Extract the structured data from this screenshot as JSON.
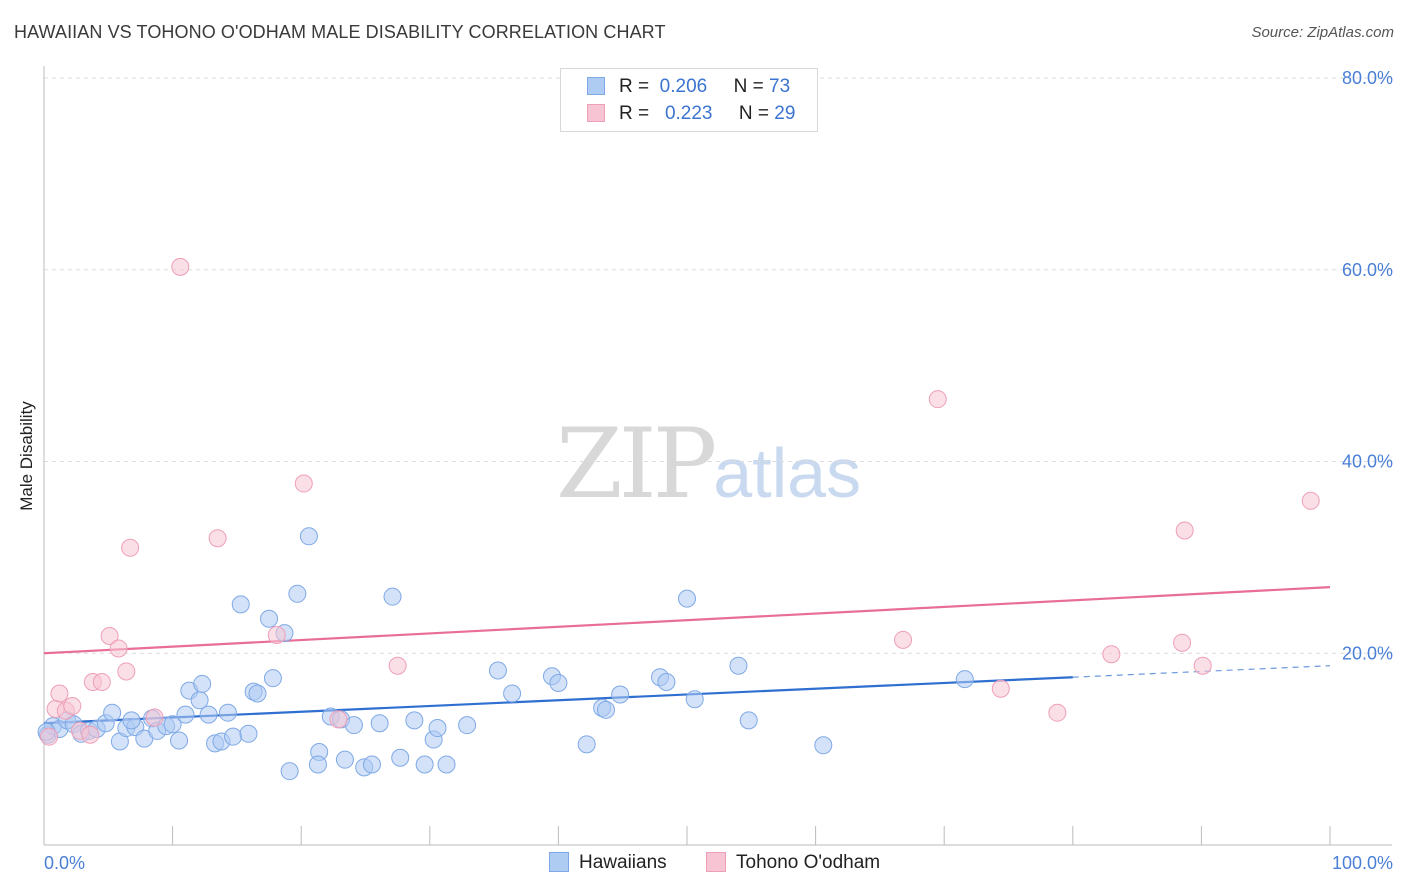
{
  "title": "HAWAIIAN VS TOHONO O'ODHAM MALE DISABILITY CORRELATION CHART",
  "source": "Source: ZipAtlas.com",
  "watermark": {
    "zip": "ZIP",
    "atlas": "atlas"
  },
  "legend": {
    "r_label": "R =",
    "n_label": "N =",
    "series": [
      {
        "r": "0.206",
        "n": "73",
        "fill": "#aecbf2",
        "stroke": "#7fa9e6"
      },
      {
        "r": "0.223",
        "n": "29",
        "fill": "#f7c4d3",
        "stroke": "#ee9fb8"
      }
    ]
  },
  "bottom_legend": [
    "Hawaiians",
    "Tohono O'odham"
  ],
  "chart_data": {
    "type": "scatter",
    "title": "HAWAIIAN VS TOHONO O'ODHAM MALE DISABILITY CORRELATION CHART",
    "xlabel": "",
    "ylabel": "Male Disability",
    "xlim": [
      0,
      100
    ],
    "ylim": [
      0,
      80
    ],
    "y_ticks": [
      20,
      40,
      60,
      80
    ],
    "y_tick_labels": [
      "20.0%",
      "40.0%",
      "60.0%",
      "80.0%"
    ],
    "x_tick_labels": [
      "0.0%",
      "100.0%"
    ],
    "series": [
      {
        "name": "Hawaiians",
        "color": "#6f9fe3",
        "line_color": "#2f6fd0",
        "trend": {
          "x0": 0,
          "y0": 12.7,
          "x1": 80,
          "y1": 17.5,
          "dash_to_x": 100,
          "dash_to_y": 18.7
        },
        "points": [
          [
            0.3,
            11.5
          ],
          [
            0.7,
            12.4
          ],
          [
            1.2,
            12.1
          ],
          [
            1.8,
            13.0
          ],
          [
            2.3,
            12.6
          ],
          [
            2.9,
            11.6
          ],
          [
            3.5,
            11.9
          ],
          [
            4.1,
            12.1
          ],
          [
            4.8,
            12.7
          ],
          [
            5.3,
            13.8
          ],
          [
            5.9,
            10.8
          ],
          [
            6.4,
            12.2
          ],
          [
            7.1,
            12.3
          ],
          [
            7.8,
            11.1
          ],
          [
            8.4,
            13.2
          ],
          [
            8.8,
            11.9
          ],
          [
            9.5,
            12.4
          ],
          [
            10.0,
            12.6
          ],
          [
            10.5,
            10.9
          ],
          [
            11.0,
            13.6
          ],
          [
            11.3,
            16.1
          ],
          [
            12.1,
            15.1
          ],
          [
            12.3,
            16.8
          ],
          [
            12.8,
            13.6
          ],
          [
            13.3,
            10.6
          ],
          [
            13.8,
            10.8
          ],
          [
            14.3,
            13.8
          ],
          [
            14.7,
            11.3
          ],
          [
            15.3,
            25.1
          ],
          [
            15.9,
            11.6
          ],
          [
            16.3,
            16.0
          ],
          [
            16.6,
            15.8
          ],
          [
            17.5,
            23.6
          ],
          [
            17.8,
            17.4
          ],
          [
            18.7,
            22.1
          ],
          [
            19.1,
            7.7
          ],
          [
            19.7,
            26.2
          ],
          [
            20.6,
            32.2
          ],
          [
            21.4,
            9.7
          ],
          [
            21.3,
            8.4
          ],
          [
            22.3,
            13.4
          ],
          [
            23.1,
            13.1
          ],
          [
            23.4,
            8.9
          ],
          [
            24.1,
            12.5
          ],
          [
            24.9,
            8.1
          ],
          [
            25.5,
            8.4
          ],
          [
            26.1,
            12.7
          ],
          [
            27.1,
            25.9
          ],
          [
            27.7,
            9.1
          ],
          [
            28.8,
            13.0
          ],
          [
            29.6,
            8.4
          ],
          [
            30.3,
            11.0
          ],
          [
            30.6,
            12.2
          ],
          [
            31.3,
            8.4
          ],
          [
            32.9,
            12.5
          ],
          [
            35.3,
            18.2
          ],
          [
            36.4,
            15.8
          ],
          [
            39.5,
            17.6
          ],
          [
            40.0,
            16.9
          ],
          [
            42.2,
            10.5
          ],
          [
            43.4,
            14.3
          ],
          [
            43.7,
            14.1
          ],
          [
            44.8,
            15.7
          ],
          [
            47.9,
            17.5
          ],
          [
            48.4,
            17.0
          ],
          [
            50.0,
            25.7
          ],
          [
            50.6,
            15.2
          ],
          [
            54.0,
            18.7
          ],
          [
            54.8,
            13.0
          ],
          [
            60.6,
            10.4
          ],
          [
            71.6,
            17.3
          ],
          [
            0.2,
            11.8
          ],
          [
            6.8,
            13.0
          ]
        ]
      },
      {
        "name": "Tohono O'odham",
        "color": "#f2a0bb",
        "line_color": "#e86d97",
        "trend": {
          "x0": 0,
          "y0": 20.0,
          "x1": 100,
          "y1": 26.9
        },
        "points": [
          [
            0.4,
            11.3
          ],
          [
            0.9,
            14.2
          ],
          [
            1.2,
            15.8
          ],
          [
            1.7,
            14.0
          ],
          [
            2.2,
            14.5
          ],
          [
            2.8,
            11.9
          ],
          [
            3.6,
            11.5
          ],
          [
            3.8,
            17.0
          ],
          [
            4.5,
            17.0
          ],
          [
            5.1,
            21.8
          ],
          [
            5.8,
            20.5
          ],
          [
            6.4,
            18.1
          ],
          [
            6.7,
            31.0
          ],
          [
            8.6,
            13.3
          ],
          [
            10.6,
            60.3
          ],
          [
            13.5,
            32.0
          ],
          [
            18.1,
            21.9
          ],
          [
            20.2,
            37.7
          ],
          [
            22.9,
            13.1
          ],
          [
            27.5,
            18.7
          ],
          [
            66.8,
            21.4
          ],
          [
            69.5,
            46.5
          ],
          [
            74.4,
            16.3
          ],
          [
            78.8,
            13.8
          ],
          [
            83.0,
            19.9
          ],
          [
            88.5,
            21.1
          ],
          [
            88.7,
            32.8
          ],
          [
            90.1,
            18.7
          ],
          [
            98.5,
            35.9
          ]
        ]
      }
    ]
  }
}
